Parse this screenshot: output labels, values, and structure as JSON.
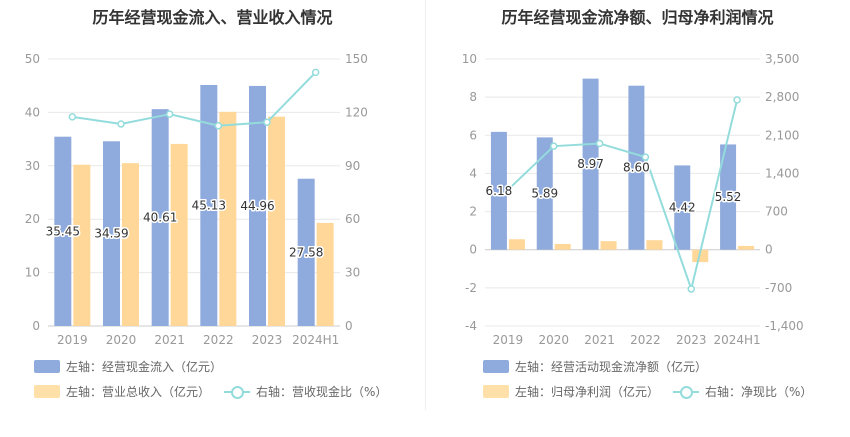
{
  "left_panel": {
    "title": "历年经营现金流入、营业收入情况",
    "legend": [
      {
        "label": "左轴：经营现金流入（亿元）",
        "color": "#8faadc",
        "kind": "bar"
      },
      {
        "label": "左轴：营业总收入（亿元）",
        "color": "#ffe0a8",
        "kind": "bar"
      },
      {
        "label": "右轴：营收现金比（%）",
        "color": "#94dcdc",
        "kind": "line"
      }
    ]
  },
  "right_panel": {
    "title": "历年经营现金流净额、归母净利润情况",
    "legend": [
      {
        "label": "左轴：经营活动现金流净额（亿元）",
        "color": "#8faadc",
        "kind": "bar"
      },
      {
        "label": "左轴：归母净利润（亿元）",
        "color": "#ffe0a8",
        "kind": "bar"
      },
      {
        "label": "右轴：净现比（%）",
        "color": "#94dcdc",
        "kind": "line"
      }
    ]
  },
  "chart_data": [
    {
      "type": "bar",
      "categories": [
        "2019",
        "2020",
        "2021",
        "2022",
        "2023",
        "2024H1"
      ],
      "left_axis": {
        "min": 0,
        "max": 50,
        "ticks": [
          0,
          10,
          20,
          30,
          40,
          50
        ]
      },
      "right_axis": {
        "min": 0,
        "max": 150,
        "ticks": [
          0,
          30,
          60,
          90,
          120,
          150
        ]
      },
      "series": [
        {
          "name": "经营现金流入（亿元）",
          "axis": "left",
          "kind": "bar",
          "color": "#8faadc",
          "values": [
            35.45,
            34.59,
            40.61,
            45.13,
            44.96,
            27.58
          ],
          "labels": [
            "35.45",
            "34.59",
            "40.61",
            "45.13",
            "44.96",
            "27.58"
          ]
        },
        {
          "name": "营业总收入（亿元）",
          "axis": "left",
          "kind": "bar",
          "color": "#ffd899",
          "values": [
            30.2,
            30.5,
            34.1,
            40.1,
            39.2,
            19.3
          ]
        },
        {
          "name": "营收现金比（%）",
          "axis": "right",
          "kind": "line",
          "color": "#94dcdc",
          "values": [
            117.5,
            113.5,
            119.0,
            112.5,
            114.5,
            142.5
          ]
        }
      ]
    },
    {
      "type": "bar",
      "categories": [
        "2019",
        "2020",
        "2021",
        "2022",
        "2023",
        "2024H1"
      ],
      "left_axis": {
        "min": -4,
        "max": 10,
        "ticks": [
          -4,
          -2,
          0,
          2,
          4,
          6,
          8,
          10
        ]
      },
      "right_axis": {
        "min": -1400,
        "max": 3500,
        "ticks": [
          -1400,
          -700,
          0,
          700,
          1400,
          2100,
          2800,
          3500
        ]
      },
      "series": [
        {
          "name": "经营活动现金流净额（亿元）",
          "axis": "left",
          "kind": "bar",
          "color": "#8faadc",
          "values": [
            6.18,
            5.89,
            8.97,
            8.6,
            4.42,
            5.52
          ],
          "labels": [
            "6.18",
            "5.89",
            "8.97",
            "8.60",
            "4.42",
            "5.52"
          ]
        },
        {
          "name": "归母净利润（亿元）",
          "axis": "left",
          "kind": "bar",
          "color": "#ffd899",
          "values": [
            0.55,
            0.3,
            0.45,
            0.5,
            -0.65,
            0.2
          ]
        },
        {
          "name": "净现比（%）",
          "axis": "right",
          "kind": "line",
          "color": "#94dcdc",
          "values": [
            1100,
            1900,
            1950,
            1700,
            -720,
            2750
          ]
        }
      ]
    }
  ]
}
